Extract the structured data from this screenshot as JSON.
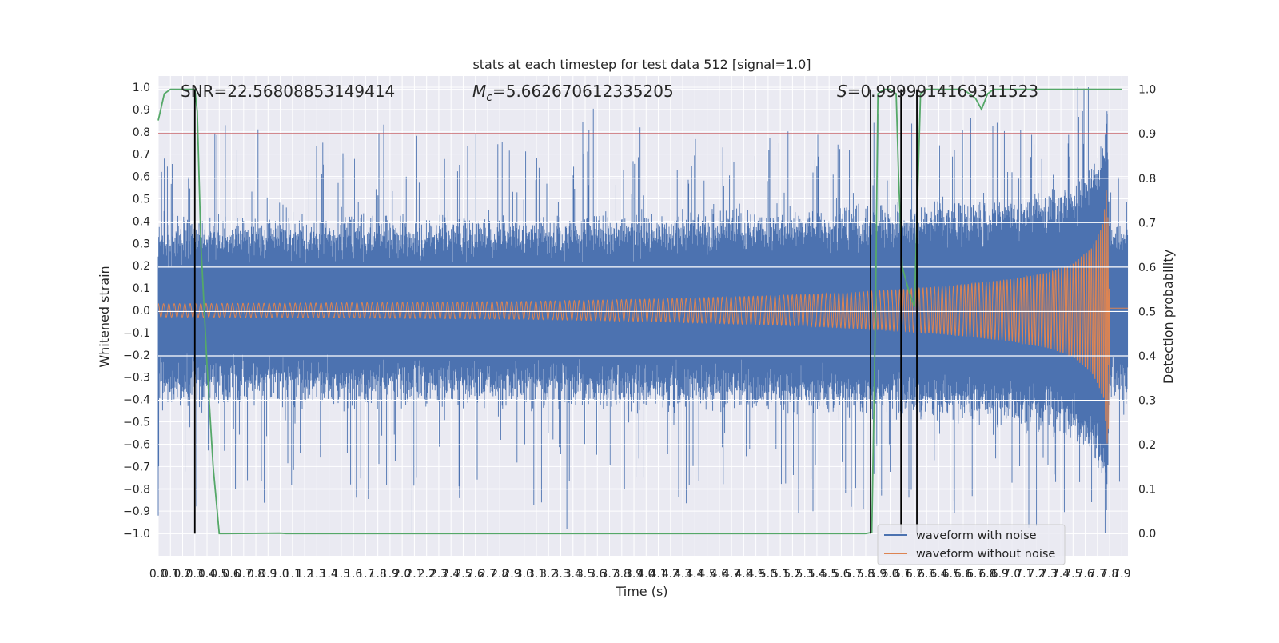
{
  "chart_data": {
    "type": "line",
    "title": "stats at each timestep for test data 512 [signal=1.0]",
    "xlabel": "Time (s)",
    "ylabel": "Whitened strain",
    "y2label": "Detection probability",
    "xlim": [
      0.0,
      7.95
    ],
    "ylim": [
      -1.1,
      1.05
    ],
    "y2lim": [
      -0.05,
      1.03
    ],
    "grid": true,
    "x_ticks": [
      "0.0",
      "0.1",
      "0.2",
      "0.3",
      "0.4",
      "0.5",
      "0.6",
      "0.7",
      "0.8",
      "0.9",
      "1.0",
      "1.1",
      "1.2",
      "1.3",
      "1.4",
      "1.5",
      "1.6",
      "1.7",
      "1.8",
      "1.9",
      "2.0",
      "2.1",
      "2.2",
      "2.3",
      "2.4",
      "2.5",
      "2.6",
      "2.7",
      "2.8",
      "2.9",
      "3.0",
      "3.1",
      "3.2",
      "3.3",
      "3.4",
      "3.5",
      "3.6",
      "3.7",
      "3.8",
      "3.9",
      "4.0",
      "4.1",
      "4.2",
      "4.3",
      "4.4",
      "4.5",
      "4.6",
      "4.7",
      "4.8",
      "4.9",
      "5.0",
      "5.1",
      "5.2",
      "5.3",
      "5.4",
      "5.5",
      "5.6",
      "5.7",
      "5.8",
      "5.9",
      "6.0",
      "6.1",
      "6.2",
      "6.3",
      "6.4",
      "6.5",
      "6.6",
      "6.7",
      "6.8",
      "6.9",
      "7.0",
      "7.1",
      "7.2",
      "7.3",
      "7.4",
      "7.5",
      "7.6",
      "7.7",
      "7.8",
      "7.9"
    ],
    "y_ticks": [
      "1.0",
      "0.9",
      "0.8",
      "0.7",
      "0.6",
      "0.5",
      "0.4",
      "0.3",
      "0.2",
      "0.1",
      "0.0",
      "−0.1",
      "−0.2",
      "−0.3",
      "−0.4",
      "−0.5",
      "−0.6",
      "−0.7",
      "−0.8",
      "−0.9",
      "−1.0"
    ],
    "y2_ticks": [
      "1.0",
      "0.9",
      "0.8",
      "0.7",
      "0.6",
      "0.5",
      "0.4",
      "0.3",
      "0.2",
      "0.1",
      "0.0"
    ],
    "annotations": {
      "snr": "SNR=22.56808853149414",
      "mc_symbol": "M",
      "mc_sub": "c",
      "mc_value": "=5.662670612335205",
      "s_symbol": "S",
      "s_value": "=0.9999914169311523"
    },
    "legend": {
      "placement": "lower-right",
      "entries": [
        "waveform with noise",
        "waveform without noise"
      ]
    },
    "threshold": {
      "axis": "y2",
      "value": 0.9,
      "color": "#c44e52"
    },
    "vertical_markers_x": [
      0.3,
      5.84,
      6.09,
      6.22
    ],
    "series": [
      {
        "name": "waveform with noise",
        "axis": "y",
        "color": "#4c72b0",
        "description_values": "noise envelope approx. ±0.45 with spikes up to ±1.0"
      },
      {
        "name": "waveform without noise",
        "axis": "y",
        "color": "#dd8452",
        "envelope_x": [
          0.0,
          1.0,
          2.0,
          3.0,
          4.0,
          5.0,
          5.5,
          6.0,
          6.5,
          7.0,
          7.3,
          7.5,
          7.65,
          7.7,
          7.75,
          7.78,
          7.8
        ],
        "envelope_y": [
          0.03,
          0.032,
          0.036,
          0.04,
          0.05,
          0.065,
          0.075,
          0.09,
          0.11,
          0.14,
          0.17,
          0.21,
          0.28,
          0.33,
          0.4,
          0.6,
          0.0
        ]
      },
      {
        "axis": "y2",
        "color": "#55a868",
        "x": [
          0.0,
          0.05,
          0.1,
          0.3,
          0.32,
          0.35,
          0.4,
          0.45,
          0.5,
          0.55,
          1.0,
          1.05,
          1.1,
          2.0,
          3.0,
          4.0,
          5.0,
          5.8,
          5.85,
          5.88,
          5.9,
          5.95,
          6.0,
          6.05,
          6.07,
          6.1,
          6.15,
          6.2,
          6.22,
          6.25,
          6.3,
          6.4,
          6.5,
          6.6,
          6.7,
          6.75,
          6.8,
          6.85,
          7.0,
          7.5,
          7.8,
          7.9
        ],
        "y": [
          0.93,
          0.99,
          1.0,
          1.0,
          0.95,
          0.65,
          0.38,
          0.15,
          0.0,
          0.0,
          0.001,
          0.0,
          0.0,
          0.0,
          0.0,
          0.0,
          0.0,
          0.0,
          0.003,
          0.5,
          0.99,
          1.0,
          1.0,
          0.99,
          0.8,
          0.6,
          0.55,
          0.51,
          0.7,
          0.99,
          1.0,
          1.0,
          1.0,
          1.0,
          0.98,
          0.955,
          0.99,
          1.0,
          1.0,
          1.0,
          1.0,
          1.0
        ]
      }
    ]
  }
}
